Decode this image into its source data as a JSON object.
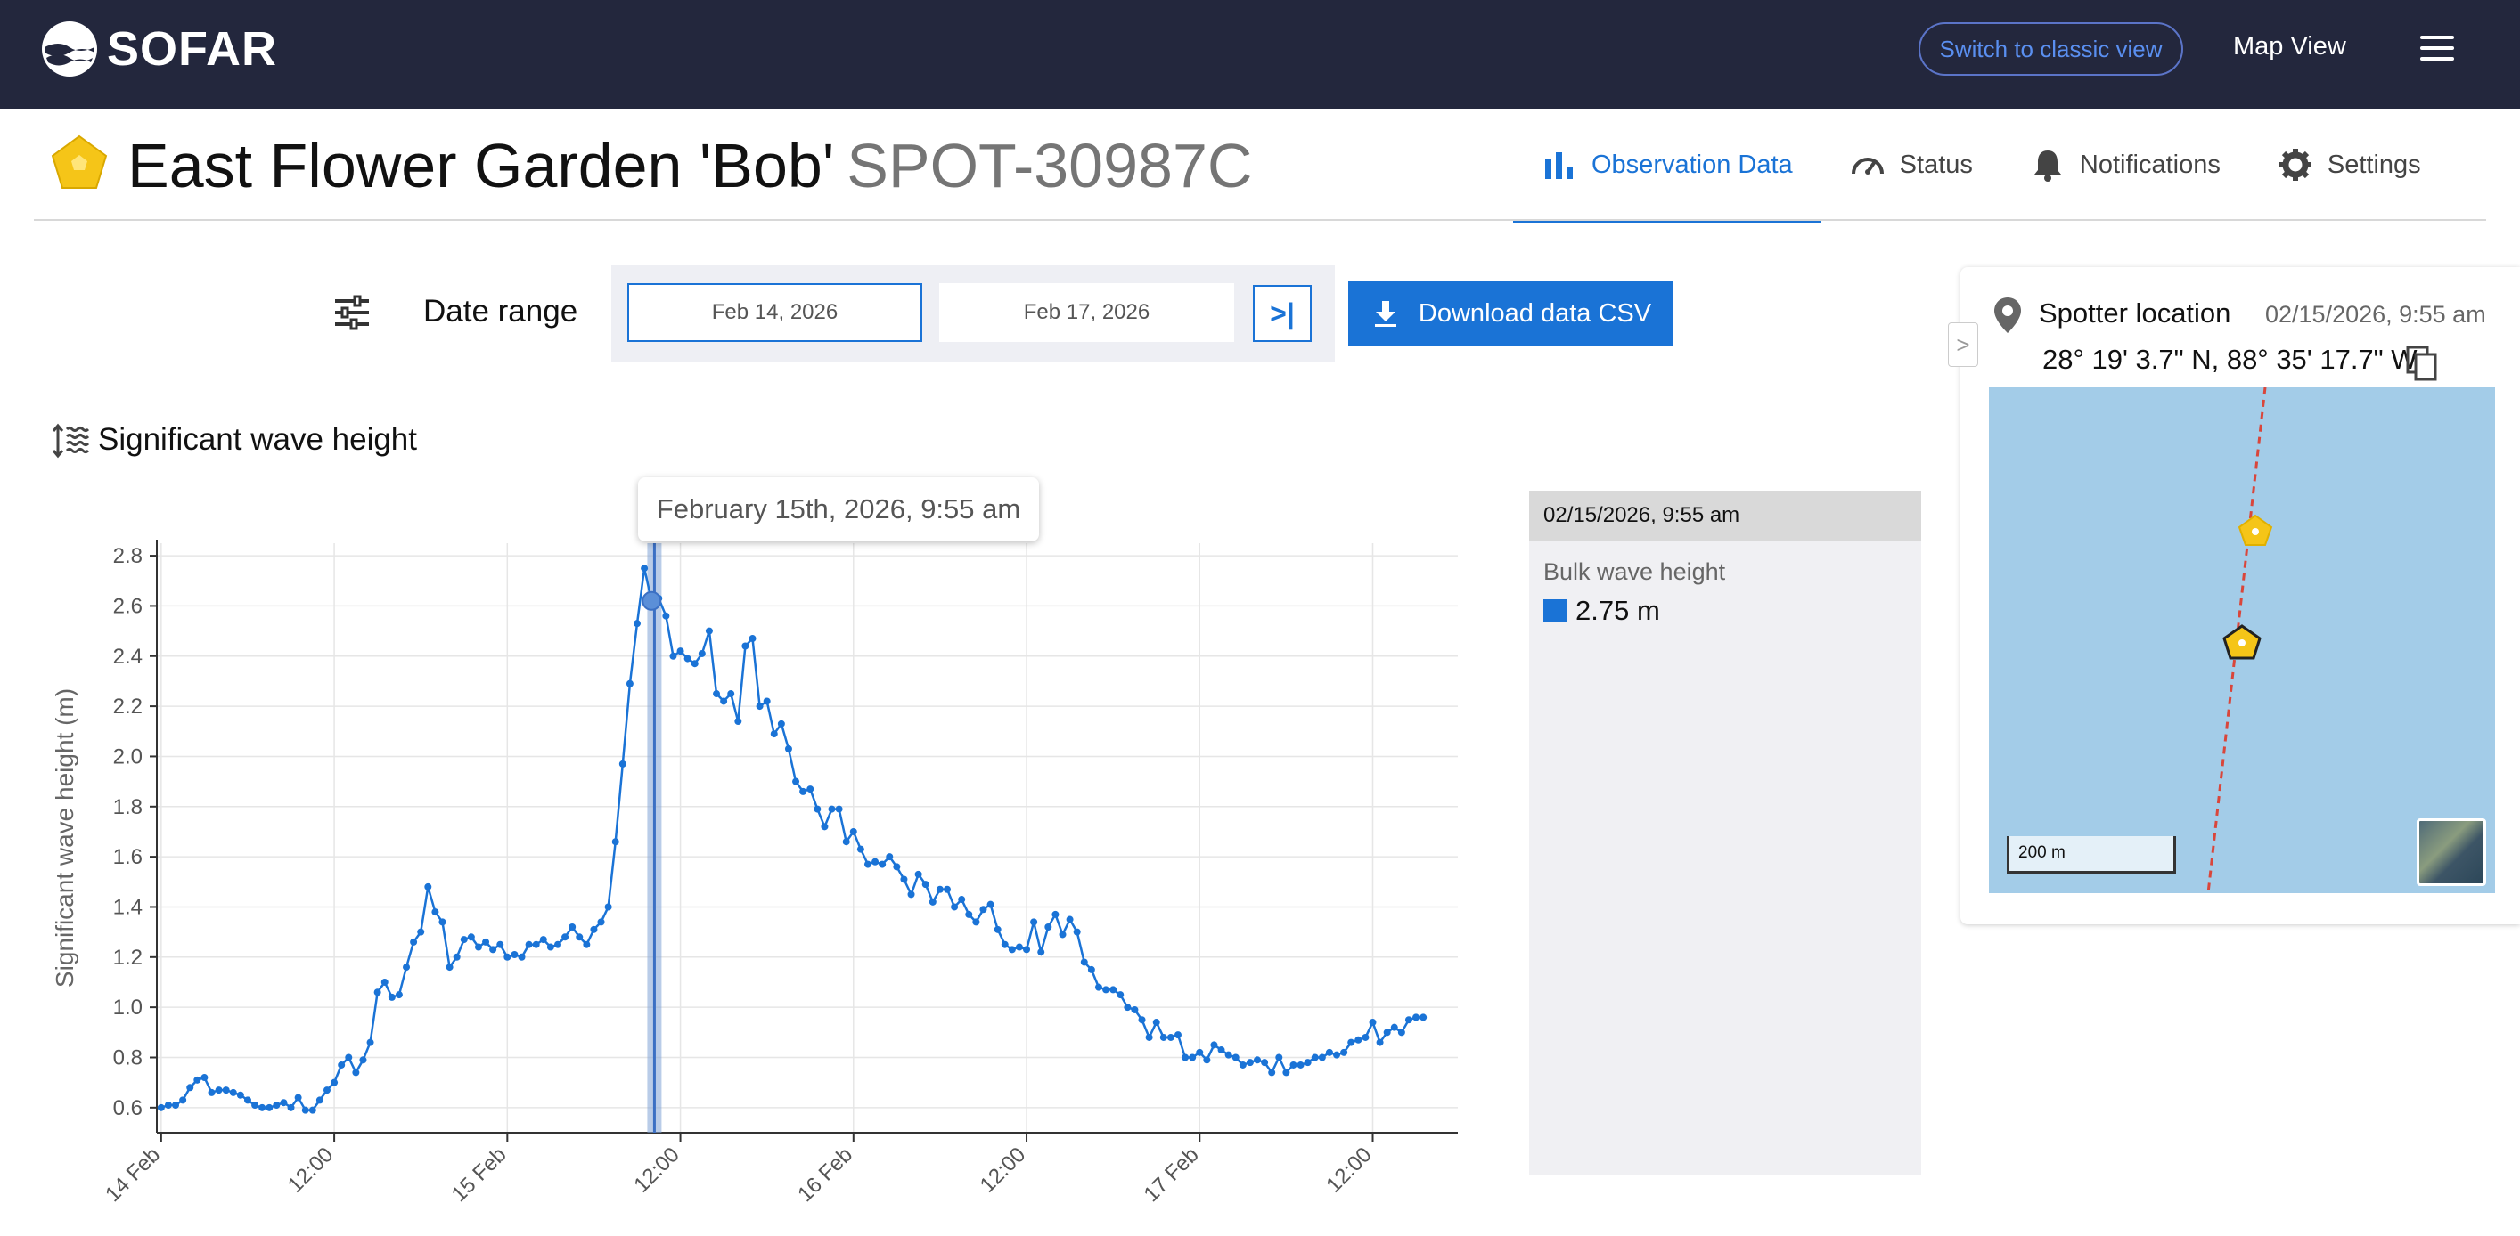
{
  "header": {
    "logo_text": "SOFAR",
    "classic_view_label": "Switch to classic view",
    "map_view_label": "Map View",
    "menu_icon": "hamburger-menu-icon"
  },
  "title": {
    "name": "East Flower Garden 'Bob'",
    "spotter_id": "SPOT-30987C",
    "icon": "spotter-pentagon-icon",
    "icon_color": "#f5c518"
  },
  "tabs": [
    {
      "label": "Observation Data",
      "icon": "bar-chart-icon",
      "active": true
    },
    {
      "label": "Status",
      "icon": "gauge-icon",
      "active": false
    },
    {
      "label": "Notifications",
      "icon": "bell-icon",
      "active": false
    },
    {
      "label": "Settings",
      "icon": "gear-icon",
      "active": false
    }
  ],
  "controls": {
    "date_range_label": "Date range",
    "from_date": "Feb 14, 2026",
    "to_date": "Feb 17, 2026",
    "jump_label": ">|",
    "download_label": "Download data CSV"
  },
  "chart_section": {
    "title": "Significant wave height",
    "tooltip": "February 15th, 2026, 9:55 am"
  },
  "readout": {
    "timestamp": "02/15/2026, 9:55 am",
    "label": "Bulk wave height",
    "value": "2.75 m",
    "swatch_color": "#1a73d6"
  },
  "location": {
    "title": "Spotter location",
    "timestamp": "02/15/2026, 9:55 am",
    "coords": "28° 19' 3.7\" N, 88° 35' 17.7\" W",
    "scale_label": "200 m",
    "collapse_label": ">"
  },
  "chart_data": {
    "type": "line",
    "ylabel": "Significant wave height (m)",
    "xlabel": "",
    "ylim": [
      0.5,
      2.85
    ],
    "yticks": [
      0.6,
      0.8,
      1.0,
      1.2,
      1.4,
      1.6,
      1.8,
      2.0,
      2.2,
      2.4,
      2.6,
      2.8
    ],
    "xticks": [
      "14 Feb",
      "12:00",
      "15 Feb",
      "12:00",
      "16 Feb",
      "12:00",
      "17 Feb",
      "12:00"
    ],
    "xtick_hours": [
      0,
      12,
      24,
      36,
      48,
      60,
      72,
      84
    ],
    "x_range_hours": [
      -0.3,
      89.9
    ],
    "highlight_hour": 34.2,
    "grid": true,
    "line_color": "#1a73d6",
    "series": [
      {
        "hours_step": 0.5,
        "values": [
          0.6,
          0.61,
          0.61,
          0.63,
          0.68,
          0.71,
          0.72,
          0.66,
          0.67,
          0.67,
          0.66,
          0.65,
          0.63,
          0.61,
          0.6,
          0.6,
          0.61,
          0.62,
          0.6,
          0.64,
          0.59,
          0.59,
          0.63,
          0.67,
          0.7,
          0.77,
          0.8,
          0.74,
          0.79,
          0.86,
          1.06,
          1.1,
          1.04,
          1.05,
          1.16,
          1.26,
          1.3,
          1.48,
          1.38,
          1.34,
          1.16,
          1.2,
          1.27,
          1.28,
          1.24,
          1.26,
          1.23,
          1.25,
          1.2,
          1.21,
          1.2,
          1.25,
          1.25,
          1.27,
          1.24,
          1.25,
          1.28,
          1.32,
          1.28,
          1.25,
          1.31,
          1.34,
          1.4,
          1.66,
          1.97,
          2.29,
          2.53,
          2.75,
          2.62,
          2.63,
          2.56,
          2.4,
          2.42,
          2.39,
          2.37,
          2.41,
          2.5,
          2.25,
          2.22,
          2.25,
          2.14,
          2.44,
          2.47,
          2.2,
          2.22,
          2.09,
          2.13,
          2.03,
          1.9,
          1.86,
          1.87,
          1.79,
          1.72,
          1.79,
          1.79,
          1.66,
          1.7,
          1.63,
          1.57,
          1.58,
          1.57,
          1.6,
          1.56,
          1.51,
          1.45,
          1.53,
          1.49,
          1.42,
          1.47,
          1.47,
          1.4,
          1.43,
          1.37,
          1.34,
          1.39,
          1.41,
          1.31,
          1.25,
          1.23,
          1.24,
          1.23,
          1.34,
          1.22,
          1.32,
          1.37,
          1.29,
          1.35,
          1.3,
          1.18,
          1.15,
          1.08,
          1.07,
          1.07,
          1.05,
          1.0,
          0.99,
          0.95,
          0.88,
          0.94,
          0.88,
          0.88,
          0.89,
          0.8,
          0.8,
          0.82,
          0.79,
          0.85,
          0.83,
          0.81,
          0.8,
          0.77,
          0.78,
          0.79,
          0.78,
          0.74,
          0.8,
          0.74,
          0.77,
          0.77,
          0.78,
          0.8,
          0.8,
          0.82,
          0.81,
          0.82,
          0.86,
          0.87,
          0.88,
          0.94,
          0.86,
          0.9,
          0.92,
          0.9,
          0.95,
          0.96,
          0.96
        ]
      }
    ]
  }
}
